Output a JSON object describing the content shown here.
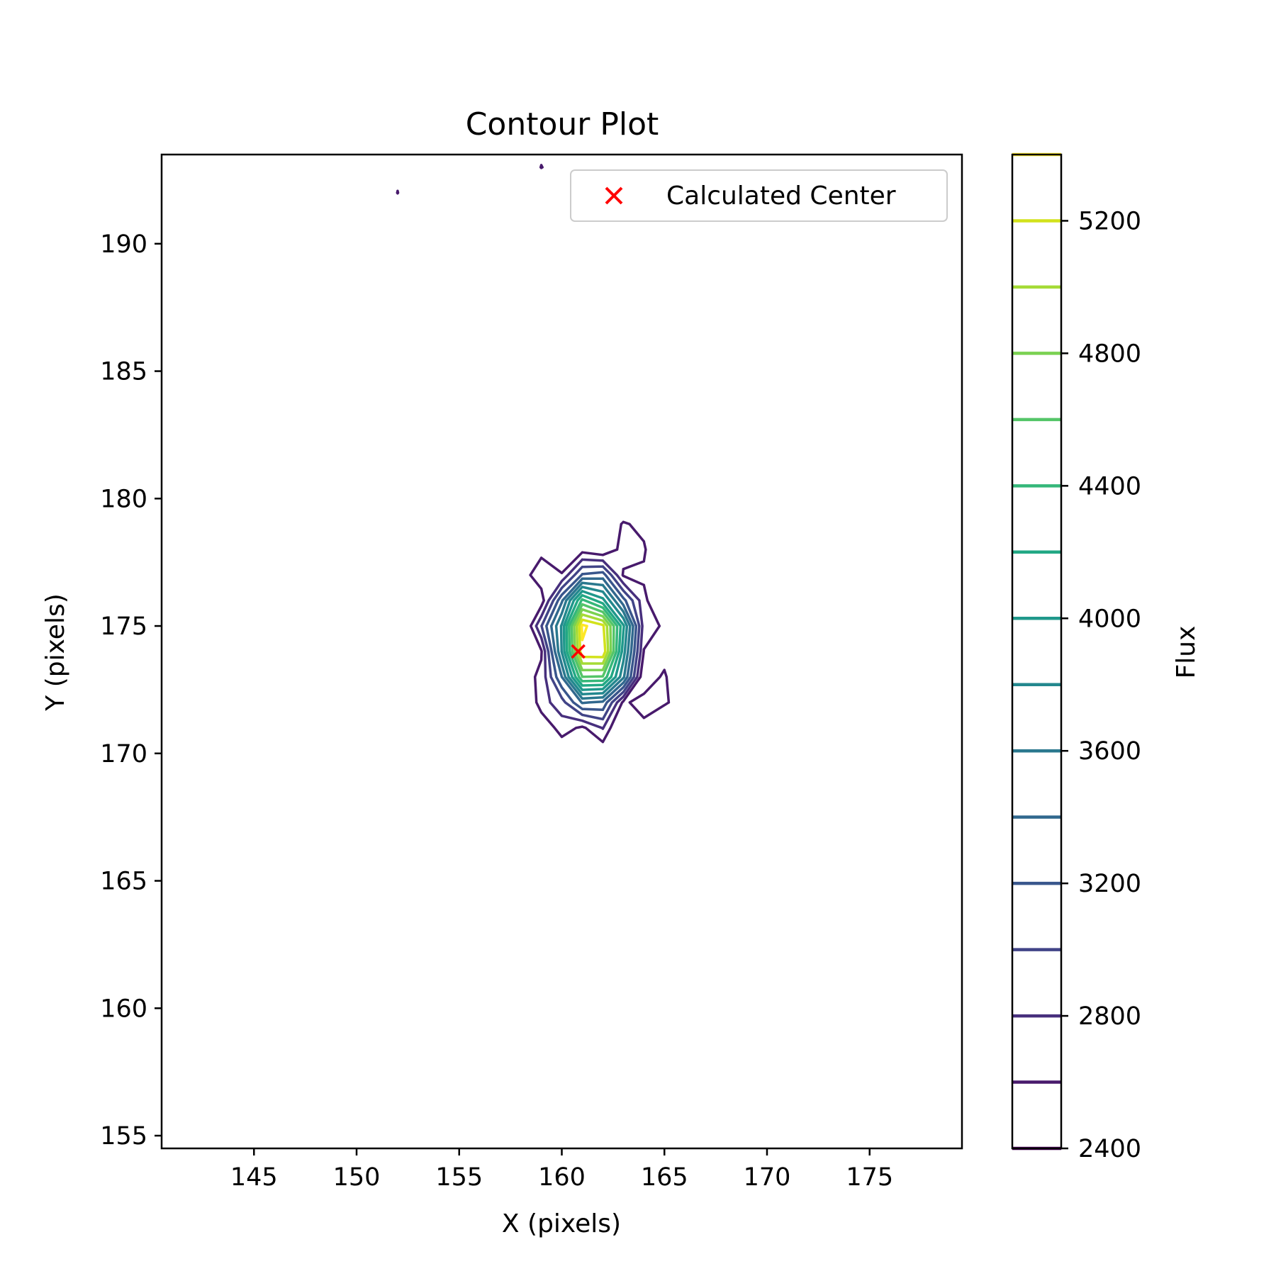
{
  "chart_data": {
    "type": "contour",
    "title": "Contour Plot",
    "xlabel": "X (pixels)",
    "ylabel": "Y (pixels)",
    "xlim": [
      140.5,
      179.5
    ],
    "ylim": [
      154.5,
      193.5
    ],
    "xticks": [
      "145",
      "150",
      "155",
      "160",
      "165",
      "170",
      "175"
    ],
    "yticks": [
      "155",
      "160",
      "165",
      "170",
      "175",
      "180",
      "185",
      "190"
    ],
    "colorbar": {
      "label": "Flux",
      "range": [
        2400,
        5400
      ],
      "levels": [
        2400,
        2600,
        2800,
        3000,
        3200,
        3400,
        3600,
        3800,
        4000,
        4200,
        4400,
        4600,
        4800,
        5000,
        5200,
        5400
      ],
      "tick_labels": [
        "2400",
        "2800",
        "3200",
        "3600",
        "4000",
        "4400",
        "4800",
        "5200"
      ],
      "level_colors": [
        "#440154",
        "#481a6c",
        "#472f7d",
        "#414487",
        "#39568c",
        "#31688e",
        "#2a788e",
        "#23888e",
        "#1f988b",
        "#22a884",
        "#35b779",
        "#54c568",
        "#7ad151",
        "#a5db36",
        "#d2e21b",
        "#fde725"
      ]
    },
    "peak": {
      "x": 161.5,
      "y": 174.5,
      "flux": 5300
    },
    "center_marker": {
      "label": "Calculated Center",
      "x": 160.8,
      "y": 174.0,
      "color": "#ff0000",
      "marker": "x"
    },
    "legend_position": "top-right",
    "grid": false
  }
}
